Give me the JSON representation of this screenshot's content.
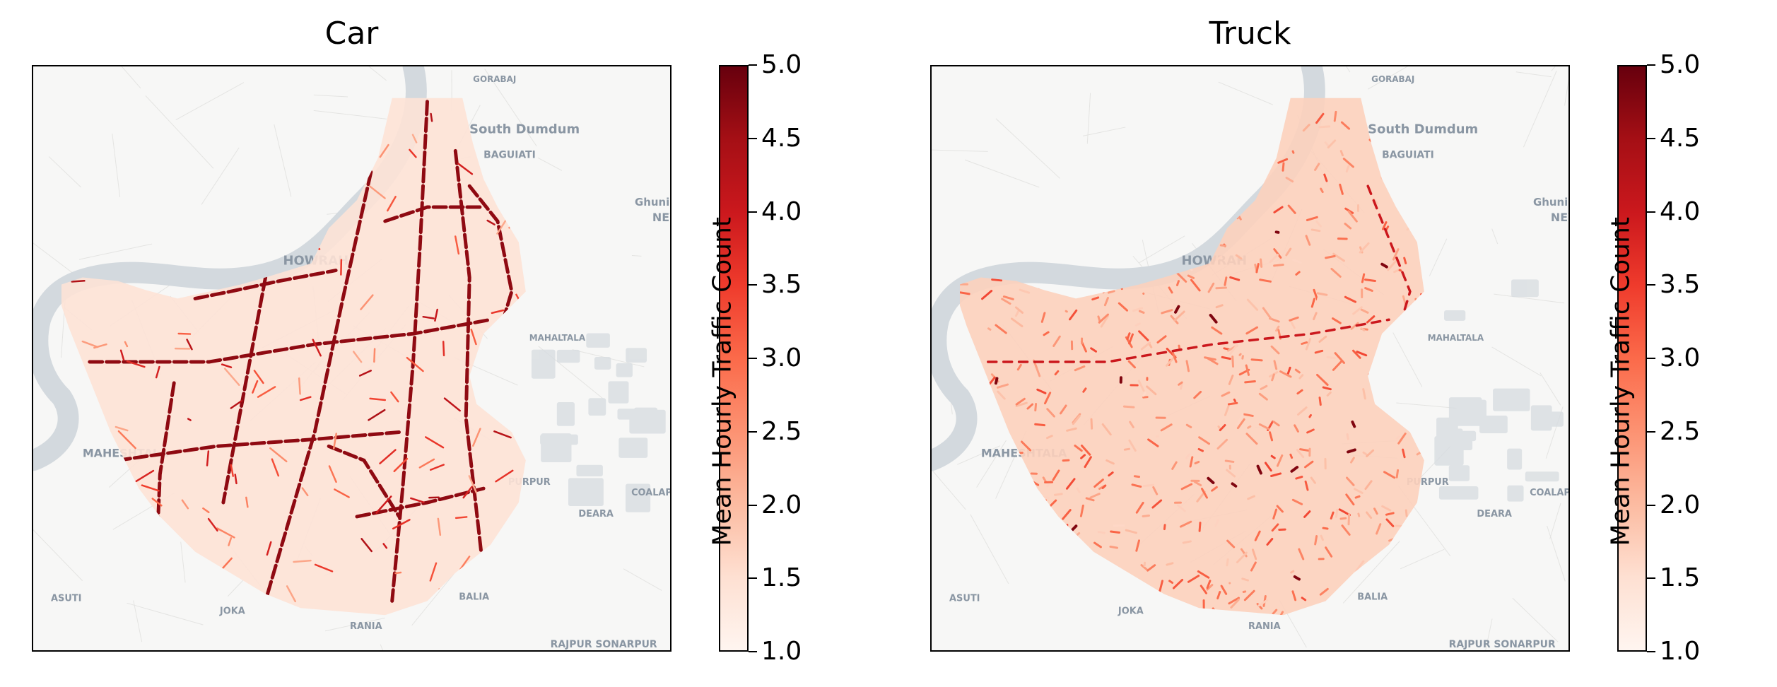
{
  "colors": {
    "cmap_low": "#fff5f0",
    "cmap_high": "#67000d",
    "river": "#d3d9de",
    "basemap": "#f7f7f6"
  },
  "chart_data": [
    {
      "type": "heatmap",
      "title": "Car",
      "colorbar_label": "Mean Hourly Traffic Count",
      "colorbar_range": [
        1.0,
        5.0
      ],
      "colorbar_ticks": [
        "1.0",
        "1.5",
        "2.0",
        "2.5",
        "3.0",
        "3.5",
        "4.0",
        "4.5",
        "5.0"
      ],
      "colormap": "Reds",
      "map_labels": [
        "South Dumdum",
        "BAGUIATI",
        "GORABAJ",
        "HOWRAH",
        "Ghuni",
        "NEW",
        "MAHESHTALA",
        "ASUTI",
        "JOKA",
        "RANIA",
        "BALIA",
        "DEARA",
        "COALAPO",
        "PURPUR",
        "RAJPUR SONARPUR",
        "MAHALTALA"
      ],
      "pattern": "major roads high intensity"
    },
    {
      "type": "heatmap",
      "title": "Truck",
      "colorbar_label": "Mean Hourly Traffic Count",
      "colorbar_range": [
        1.0,
        5.0
      ],
      "colorbar_ticks": [
        "1.0",
        "1.5",
        "2.0",
        "2.5",
        "3.0",
        "3.5",
        "4.0",
        "4.5",
        "5.0"
      ],
      "colormap": "Reds",
      "map_labels": [
        "South Dumdum",
        "BAGUIATI",
        "GORABAJ",
        "HOWRAH",
        "Ghuni",
        "NEW",
        "MAHESHTALA",
        "ASUTI",
        "JOKA",
        "RANIA",
        "BALIA",
        "DEARA",
        "COALAPO",
        "PURPUR",
        "RAJPUR SONARPUR",
        "MAHALTALA"
      ],
      "pattern": "diffuse moderate intensity"
    }
  ]
}
